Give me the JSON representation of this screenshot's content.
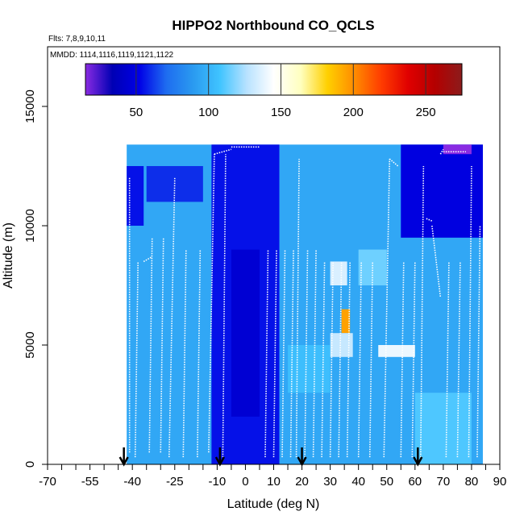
{
  "chart_data": {
    "type": "heatmap",
    "title": "HIPPO2 Northbound CO_QCLS",
    "flights_note": "Flts: 7,8,9,10,11",
    "dates_note": "MMDD: 1114,1116,1119,1121,1122",
    "xlabel": "Latitude (deg N)",
    "ylabel": "Altitude (m)",
    "xlim": [
      -70,
      90
    ],
    "ylim": [
      0,
      17500
    ],
    "x_ticks": [
      -70,
      -65,
      -60,
      -55,
      -50,
      -45,
      -40,
      -35,
      -30,
      -25,
      -20,
      -15,
      -10,
      -5,
      0,
      5,
      10,
      15,
      20,
      25,
      30,
      35,
      40,
      45,
      50,
      55,
      60,
      65,
      70,
      75,
      80,
      85,
      90
    ],
    "x_tick_labels": [
      "-70",
      "",
      "",
      "-55",
      "",
      "",
      "-40",
      "",
      "",
      "-25",
      "",
      "",
      "-10",
      "",
      "0",
      "",
      "10",
      "",
      "20",
      "",
      "30",
      "",
      "40",
      "",
      "50",
      "",
      "60",
      "",
      "70",
      "",
      "80",
      "",
      "90"
    ],
    "y_ticks": [
      0,
      5000,
      10000,
      15000
    ],
    "y_tick_labels": [
      "0",
      "5000",
      "10000",
      "15000"
    ],
    "colorbar": {
      "range": [
        15,
        275
      ],
      "ticks": [
        50,
        100,
        150,
        200,
        250
      ],
      "tick_labels": [
        "50",
        "100",
        "150",
        "200",
        "250"
      ],
      "colors": [
        "#8a2be2",
        "#0000b4",
        "#0000e6",
        "#1e6cf0",
        "#2a9af0",
        "#40c4ff",
        "#b8e2ff",
        "#ffffff",
        "#ffffc0",
        "#ffd000",
        "#ff8c00",
        "#ff3c00",
        "#e00000",
        "#b40000",
        "#8c1c1c"
      ]
    },
    "data_extent": {
      "lat_range": [
        -42,
        84
      ],
      "alt_range": [
        0,
        13400
      ]
    },
    "cells": [
      {
        "lat": [
          -42,
          84
        ],
        "alt": [
          0,
          13400
        ],
        "value": 95
      },
      {
        "lat": [
          -42,
          -36
        ],
        "alt": [
          10000,
          12500
        ],
        "value": 55
      },
      {
        "lat": [
          -12,
          12
        ],
        "alt": [
          0,
          13400
        ],
        "value": 55
      },
      {
        "lat": [
          -5,
          5
        ],
        "alt": [
          2000,
          9000
        ],
        "value": 45
      },
      {
        "lat": [
          55,
          84
        ],
        "alt": [
          9500,
          13400
        ],
        "value": 50
      },
      {
        "lat": [
          70,
          80
        ],
        "alt": [
          13000,
          13400
        ],
        "value": 15
      },
      {
        "lat": [
          -35,
          -15
        ],
        "alt": [
          11000,
          12500
        ],
        "value": 60
      },
      {
        "lat": [
          30,
          36
        ],
        "alt": [
          7500,
          8500
        ],
        "value": 135
      },
      {
        "lat": [
          34,
          37
        ],
        "alt": [
          5500,
          6500
        ],
        "value": 195
      },
      {
        "lat": [
          30,
          38
        ],
        "alt": [
          4500,
          5500
        ],
        "value": 130
      },
      {
        "lat": [
          47,
          60
        ],
        "alt": [
          4500,
          5000
        ],
        "value": 140
      },
      {
        "lat": [
          15,
          30
        ],
        "alt": [
          3000,
          5000
        ],
        "value": 105
      },
      {
        "lat": [
          40,
          50
        ],
        "alt": [
          7500,
          9000
        ],
        "value": 115
      },
      {
        "lat": [
          60,
          80
        ],
        "alt": [
          0,
          3000
        ],
        "value": 110
      }
    ],
    "profiles": [
      {
        "lat": [
          -41,
          -41
        ],
        "alt": [
          500,
          12000
        ]
      },
      {
        "lat": [
          -39,
          -38
        ],
        "alt": [
          300,
          8500
        ]
      },
      {
        "lat": [
          -36,
          -33
        ],
        "alt": [
          8500,
          8700
        ]
      },
      {
        "lat": [
          -34,
          -33
        ],
        "alt": [
          500,
          9500
        ]
      },
      {
        "lat": [
          -30,
          -29
        ],
        "alt": [
          500,
          9500
        ]
      },
      {
        "lat": [
          -27,
          -25
        ],
        "alt": [
          300,
          12000
        ]
      },
      {
        "lat": [
          -22,
          -21
        ],
        "alt": [
          300,
          9000
        ]
      },
      {
        "lat": [
          -17,
          -16
        ],
        "alt": [
          300,
          9000
        ]
      },
      {
        "lat": [
          -13,
          -11
        ],
        "alt": [
          500,
          13000
        ]
      },
      {
        "lat": [
          -11,
          -5
        ],
        "alt": [
          13000,
          13200
        ]
      },
      {
        "lat": [
          -5,
          5
        ],
        "alt": [
          13300,
          13300
        ]
      },
      {
        "lat": [
          -8,
          -7
        ],
        "alt": [
          300,
          13000
        ]
      },
      {
        "lat": [
          7,
          8
        ],
        "alt": [
          300,
          9000
        ]
      },
      {
        "lat": [
          10,
          11
        ],
        "alt": [
          300,
          9000
        ]
      },
      {
        "lat": [
          13,
          14
        ],
        "alt": [
          300,
          9000
        ]
      },
      {
        "lat": [
          16,
          17
        ],
        "alt": [
          300,
          9000
        ]
      },
      {
        "lat": [
          18,
          19
        ],
        "alt": [
          300,
          12800
        ]
      },
      {
        "lat": [
          21,
          22
        ],
        "alt": [
          300,
          9000
        ]
      },
      {
        "lat": [
          24,
          25
        ],
        "alt": [
          300,
          9000
        ]
      },
      {
        "lat": [
          27,
          28
        ],
        "alt": [
          300,
          8500
        ]
      },
      {
        "lat": [
          30,
          31
        ],
        "alt": [
          300,
          8500
        ]
      },
      {
        "lat": [
          33,
          34
        ],
        "alt": [
          300,
          8500
        ]
      },
      {
        "lat": [
          36,
          37
        ],
        "alt": [
          300,
          8500
        ]
      },
      {
        "lat": [
          40,
          41
        ],
        "alt": [
          300,
          8500
        ]
      },
      {
        "lat": [
          44,
          45
        ],
        "alt": [
          300,
          8500
        ]
      },
      {
        "lat": [
          49,
          51
        ],
        "alt": [
          300,
          12800
        ]
      },
      {
        "lat": [
          51,
          54
        ],
        "alt": [
          12800,
          12500
        ]
      },
      {
        "lat": [
          55,
          56
        ],
        "alt": [
          300,
          8500
        ]
      },
      {
        "lat": [
          59,
          60
        ],
        "alt": [
          300,
          8500
        ]
      },
      {
        "lat": [
          62,
          63
        ],
        "alt": [
          300,
          12500
        ]
      },
      {
        "lat": [
          64,
          66
        ],
        "alt": [
          10300,
          10200
        ]
      },
      {
        "lat": [
          66,
          69
        ],
        "alt": [
          10000,
          7000
        ]
      },
      {
        "lat": [
          69,
          70
        ],
        "alt": [
          13000,
          13200
        ]
      },
      {
        "lat": [
          70,
          78
        ],
        "alt": [
          13100,
          13100
        ]
      },
      {
        "lat": [
          71,
          72
        ],
        "alt": [
          300,
          8500
        ]
      },
      {
        "lat": [
          75,
          76
        ],
        "alt": [
          300,
          8500
        ]
      },
      {
        "lat": [
          79,
          80
        ],
        "alt": [
          300,
          12500
        ]
      },
      {
        "lat": [
          82,
          83
        ],
        "alt": [
          300,
          10000
        ]
      }
    ],
    "arrows": [
      -43,
      -9,
      20,
      61
    ]
  }
}
